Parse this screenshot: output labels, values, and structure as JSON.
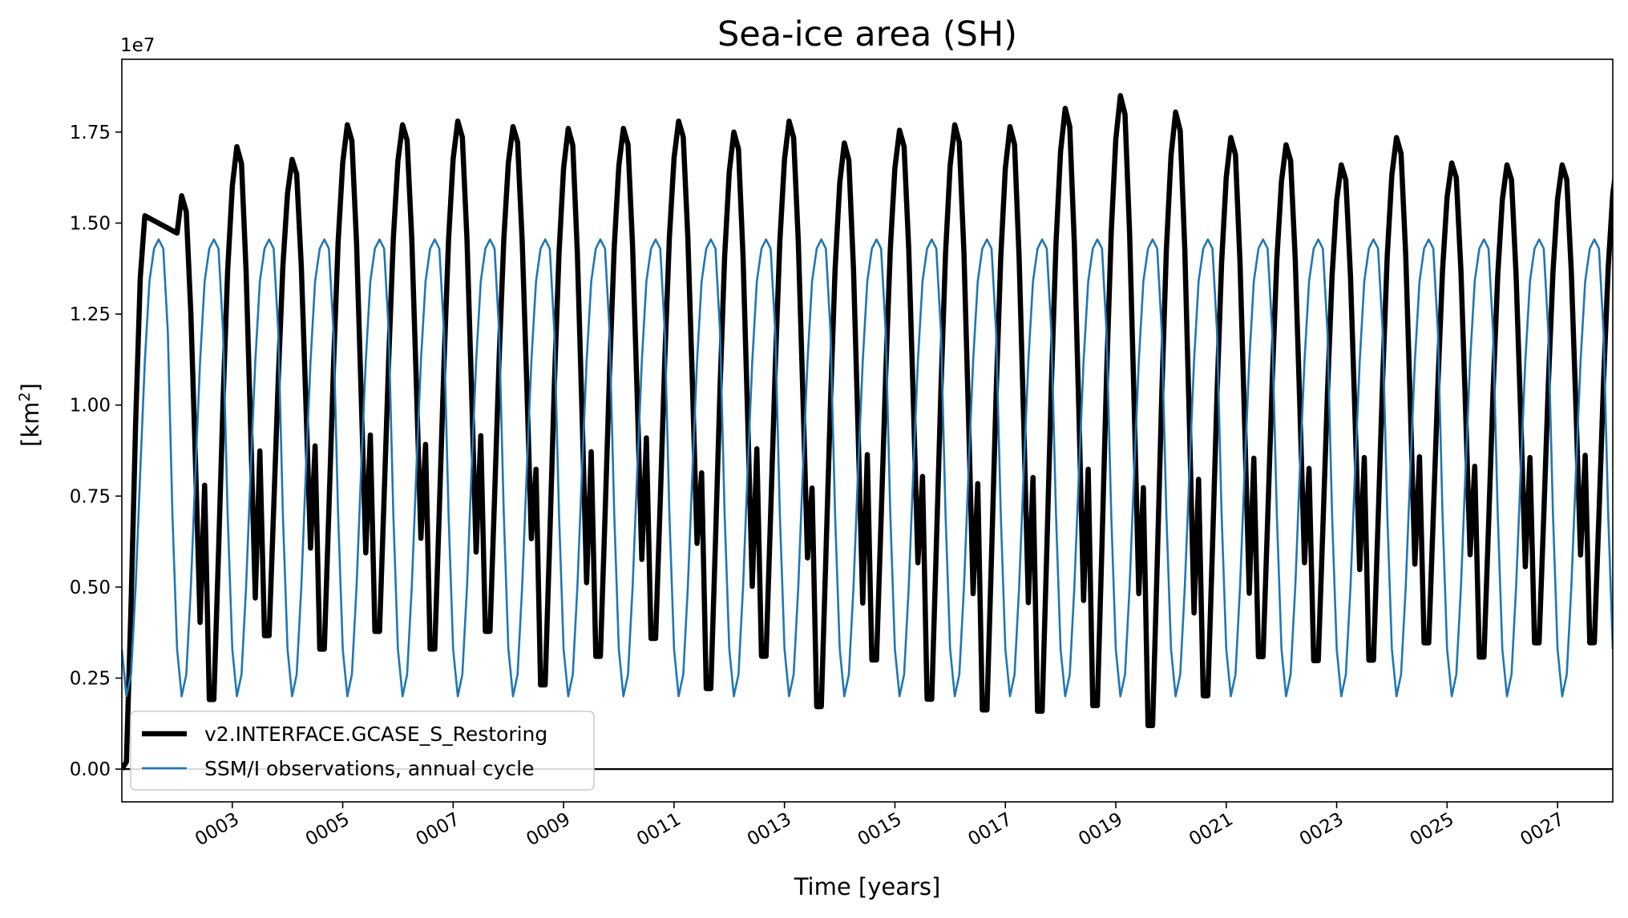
{
  "chart_data": {
    "type": "line",
    "title": "Sea-ice area (SH)",
    "xlabel": "Time [years]",
    "ylabel": "[km",
    "ylabel_superscript": "2",
    "ylabel_suffix": "]",
    "y_offset_label": "1e7",
    "xlim": [
      1.0,
      28.0
    ],
    "ylim": [
      -0.09,
      1.95
    ],
    "y_scale_note": "values in units of 1e7 km2",
    "yticks": [
      0.0,
      0.25,
      0.5,
      0.75,
      1.0,
      1.25,
      1.5,
      1.75
    ],
    "ytick_labels": [
      "0.00",
      "0.25",
      "0.50",
      "0.75",
      "1.00",
      "1.25",
      "1.50",
      "1.75"
    ],
    "xticks": [
      3,
      5,
      7,
      9,
      11,
      13,
      15,
      17,
      19,
      21,
      23,
      25,
      27
    ],
    "xtick_labels": [
      "0003",
      "0005",
      "0007",
      "0009",
      "0011",
      "0013",
      "0015",
      "0017",
      "0019",
      "0021",
      "0023",
      "0025",
      "0027"
    ],
    "zero_line": true,
    "grid": false,
    "legend_position": "lower-left",
    "series": [
      {
        "name": "v2.INTERFACE.GCASE_S_Restoring",
        "color": "#000000",
        "line_width": "thick",
        "kind": "monthly-model",
        "yearly_max": [
          1.575,
          1.71,
          1.675,
          1.77,
          1.77,
          1.78,
          1.765,
          1.76,
          1.76,
          1.78,
          1.75,
          1.78,
          1.72,
          1.755,
          1.77,
          1.765,
          1.815,
          1.85,
          1.805,
          1.735,
          1.715,
          1.66,
          1.735,
          1.665,
          1.66,
          1.66,
          1.675
        ],
        "yearly_min": [
          0.11,
          0.16,
          0.34,
          0.3,
          0.35,
          0.3,
          0.35,
          0.2,
          0.28,
          0.33,
          0.19,
          0.28,
          0.14,
          0.27,
          0.16,
          0.13,
          0.125,
          0.14,
          0.085,
          0.17,
          0.28,
          0.27,
          0.27,
          0.32,
          0.28,
          0.32,
          0.32
        ]
      },
      {
        "name": "SSM/I observations, annual cycle",
        "color": "#1f77b4",
        "line_width": "thin",
        "kind": "climatology",
        "annual_cycle": [
          0.33,
          0.2,
          0.26,
          0.5,
          0.82,
          1.12,
          1.34,
          1.43,
          1.455,
          1.43,
          1.2,
          0.7
        ]
      }
    ]
  }
}
